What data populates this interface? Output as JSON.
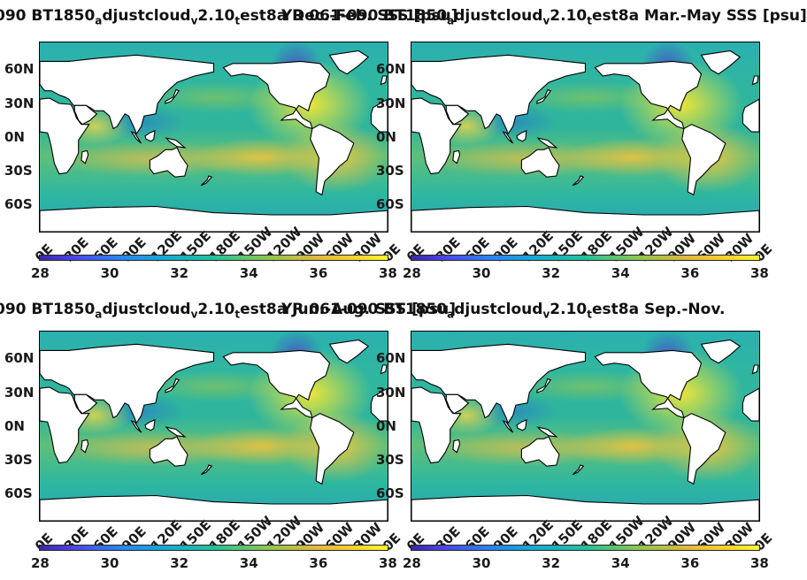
{
  "colors": {
    "land": "#ffffff",
    "coast": "#000000"
  },
  "panels": [
    {
      "title_parts": [
        "090 BT1850",
        "a",
        "djustcloud",
        "v",
        "2.10",
        "t",
        "est8a Dec.-Feb. SSS [psu]"
      ],
      "season": "Dec.-Feb."
    },
    {
      "title_parts": [
        "YR 061-090 BT1850",
        "a",
        "djustcloud",
        "v",
        "2.10",
        "t",
        "est8a Mar.-May SSS [psu]"
      ],
      "season": "Mar.-May"
    },
    {
      "title_parts": [
        "090 BT1850",
        "a",
        "djustcloud",
        "v",
        "2.10",
        "t",
        "est8a Jun.-Aug. SSS [psu]"
      ],
      "season": "Jun.-Aug."
    },
    {
      "title_parts": [
        "YR 061-090 BT1850",
        "a",
        "djustcloud",
        "v",
        "2.10",
        "t",
        "est8a Sep.-Nov."
      ],
      "season": "Sep.-Nov."
    }
  ],
  "chart_data": {
    "type": "heatmap",
    "variable": "SSS [psu]",
    "colorbar": {
      "min": 28,
      "max": 38,
      "ticks": [
        "28",
        "30",
        "32",
        "34",
        "36",
        "38"
      ]
    },
    "y_ticks": [
      "60N",
      "30N",
      "0N",
      "30S",
      "60S"
    ],
    "x_ticks": [
      "0E",
      "30E",
      "60E",
      "90E",
      "120E",
      "150E",
      "180E",
      "150W",
      "120W",
      "90W",
      "60W",
      "30W",
      "0E"
    ]
  }
}
